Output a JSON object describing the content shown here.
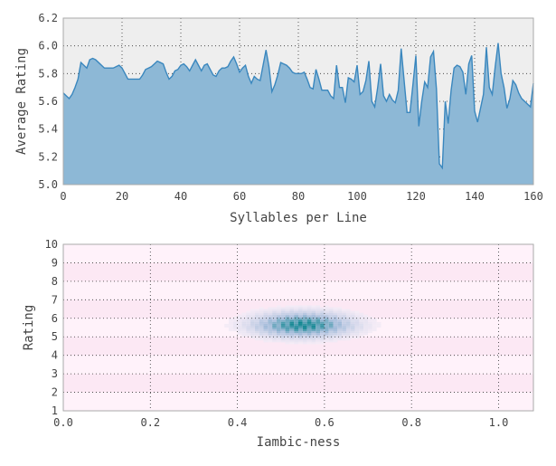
{
  "chart_data": [
    {
      "type": "area",
      "xlabel": "Syllables per Line",
      "ylabel": "Average Rating",
      "xlim": [
        0,
        160
      ],
      "ylim": [
        5.0,
        6.2
      ],
      "xticks": [
        "0",
        "20",
        "40",
        "60",
        "80",
        "100",
        "120",
        "140",
        "160"
      ],
      "yticks": [
        "5.0",
        "5.2",
        "5.4",
        "5.6",
        "5.8",
        "6.0",
        "6.2"
      ],
      "grid": true,
      "colors": {
        "fill": "#8db8d6",
        "line": "#3a87be",
        "plot_bg": "#eeeeee"
      },
      "x": [
        0,
        1,
        2,
        3,
        4,
        5,
        6,
        7,
        8,
        9,
        10,
        11,
        12,
        13,
        14,
        15,
        16,
        17,
        18,
        19,
        20,
        21,
        22,
        23,
        24,
        25,
        26,
        27,
        28,
        29,
        30,
        31,
        32,
        33,
        34,
        35,
        36,
        37,
        38,
        39,
        40,
        41,
        42,
        43,
        44,
        45,
        46,
        47,
        48,
        49,
        50,
        51,
        52,
        53,
        54,
        55,
        56,
        57,
        58,
        59,
        60,
        61,
        62,
        63,
        64,
        65,
        66,
        67,
        68,
        69,
        70,
        71,
        72,
        73,
        74,
        75,
        76,
        77,
        78,
        79,
        80,
        81,
        82,
        83,
        84,
        85,
        86,
        87,
        88,
        89,
        90,
        91,
        92,
        93,
        94,
        95,
        96,
        97,
        98,
        99,
        100,
        101,
        102,
        103,
        104,
        105,
        106,
        107,
        108,
        109,
        110,
        111,
        112,
        113,
        114,
        115,
        116,
        117,
        118,
        119,
        120,
        121,
        122,
        123,
        124,
        125,
        126,
        127,
        128,
        129,
        130,
        131,
        132,
        133,
        134,
        135,
        136,
        137,
        138,
        139,
        140,
        141,
        142,
        143,
        144,
        145,
        146,
        147,
        148,
        149,
        150,
        151,
        152,
        153,
        154,
        155,
        156,
        157,
        158,
        159,
        160
      ],
      "values": [
        5.66,
        5.64,
        5.62,
        5.65,
        5.7,
        5.76,
        5.88,
        5.86,
        5.84,
        5.9,
        5.91,
        5.9,
        5.88,
        5.86,
        5.84,
        5.84,
        5.84,
        5.84,
        5.85,
        5.86,
        5.84,
        5.8,
        5.76,
        5.76,
        5.76,
        5.76,
        5.76,
        5.79,
        5.83,
        5.84,
        5.85,
        5.87,
        5.89,
        5.88,
        5.87,
        5.81,
        5.76,
        5.78,
        5.82,
        5.83,
        5.86,
        5.87,
        5.85,
        5.82,
        5.86,
        5.9,
        5.86,
        5.82,
        5.86,
        5.87,
        5.83,
        5.79,
        5.78,
        5.82,
        5.84,
        5.84,
        5.85,
        5.89,
        5.92,
        5.87,
        5.81,
        5.84,
        5.86,
        5.78,
        5.73,
        5.78,
        5.76,
        5.75,
        5.86,
        5.97,
        5.85,
        5.67,
        5.72,
        5.79,
        5.88,
        5.87,
        5.86,
        5.84,
        5.81,
        5.8,
        5.8,
        5.8,
        5.81,
        5.76,
        5.7,
        5.69,
        5.83,
        5.76,
        5.68,
        5.68,
        5.68,
        5.64,
        5.62,
        5.86,
        5.7,
        5.7,
        5.59,
        5.77,
        5.76,
        5.74,
        5.86,
        5.65,
        5.67,
        5.75,
        5.89,
        5.6,
        5.56,
        5.7,
        5.87,
        5.64,
        5.6,
        5.65,
        5.61,
        5.59,
        5.68,
        5.98,
        5.75,
        5.52,
        5.52,
        5.72,
        5.93,
        5.42,
        5.6,
        5.74,
        5.7,
        5.92,
        5.96,
        5.69,
        5.15,
        5.12,
        5.6,
        5.44,
        5.68,
        5.84,
        5.86,
        5.85,
        5.81,
        5.65,
        5.87,
        5.93,
        5.53,
        5.45,
        5.55,
        5.65,
        5.99,
        5.7,
        5.65,
        5.85,
        6.02,
        5.8,
        5.7,
        5.55,
        5.62,
        5.75,
        5.72,
        5.66,
        5.62,
        5.6,
        5.58,
        5.56,
        5.73
      ]
    },
    {
      "type": "heatmap",
      "xlabel": "Iambic-ness",
      "ylabel": "Rating",
      "xlim": [
        0.0,
        1.08
      ],
      "ylim": [
        1,
        10
      ],
      "xticks": [
        "0.0",
        "0.2",
        "0.4",
        "0.6",
        "0.8",
        "1.0"
      ],
      "yticks": [
        "1",
        "2",
        "3",
        "4",
        "5",
        "6",
        "7",
        "8",
        "9",
        "10"
      ],
      "grid": true,
      "colors": {
        "low": "#fff2fa",
        "mid": "#a6bddb",
        "high": "#02818a"
      },
      "x_center": 0.55,
      "x_spread": 0.075,
      "y_center": 5.65,
      "y_spread": 0.45,
      "peak_bin": {
        "x": 0.55,
        "y": 5.65
      },
      "bins": {
        "x_width": 0.01,
        "y_height": 0.1
      }
    }
  ]
}
